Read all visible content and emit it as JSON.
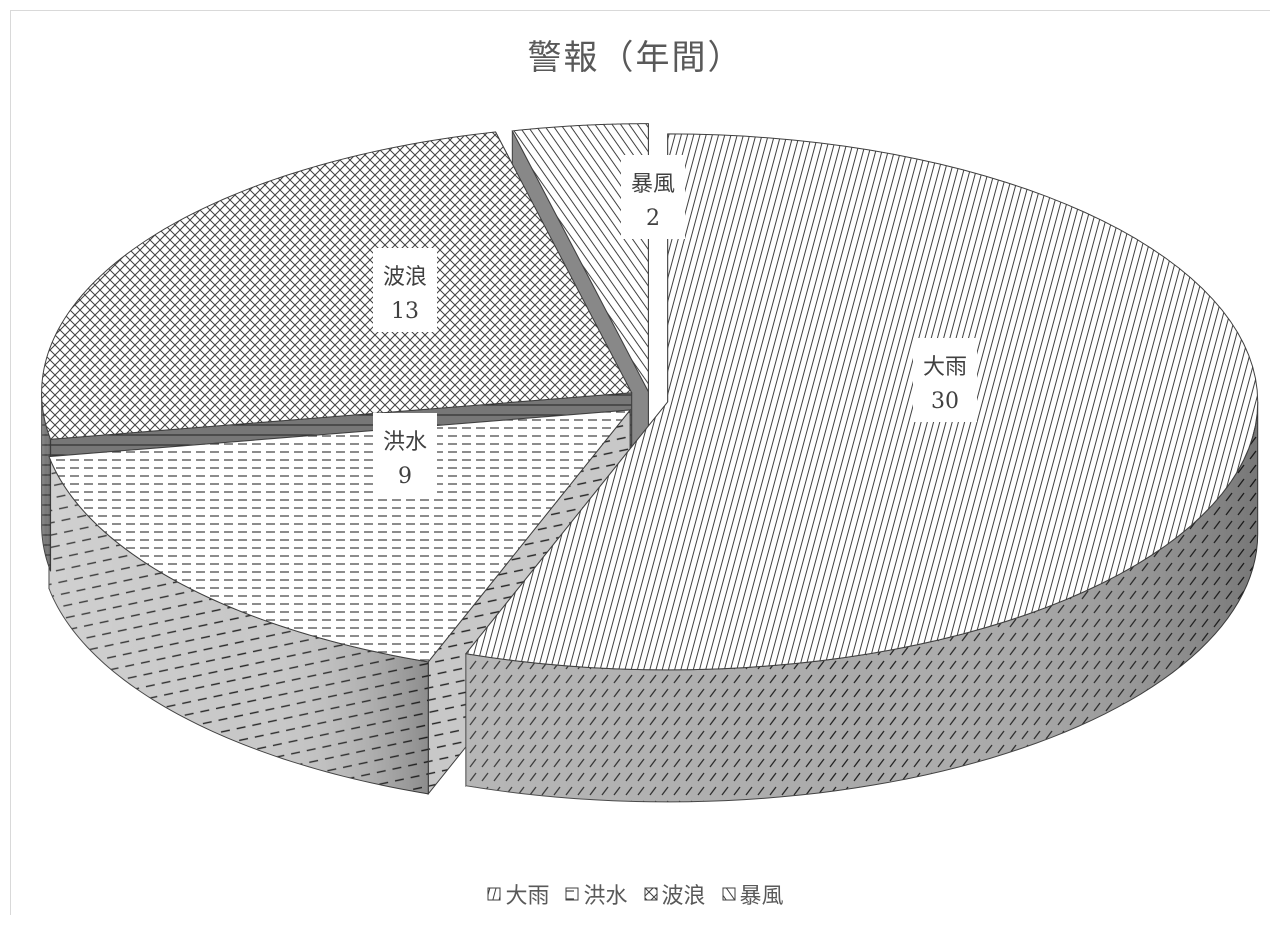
{
  "chart_data": {
    "type": "pie",
    "title": "警報（年間）",
    "categories": [
      "大雨",
      "洪水",
      "波浪",
      "暴風"
    ],
    "values": [
      30,
      9,
      13,
      2
    ],
    "data_labels": [
      {
        "category": "大雨",
        "value": "30"
      },
      {
        "category": "洪水",
        "value": "9"
      },
      {
        "category": "波浪",
        "value": "13"
      },
      {
        "category": "暴風",
        "value": "2"
      }
    ],
    "legend": {
      "position": "bottom",
      "entries": [
        "大雨",
        "洪水",
        "波浪",
        "暴風"
      ]
    },
    "style": "3d-exploded",
    "colors": {
      "edge": "#404040",
      "side": "#9a9a9a",
      "face": "#ffffff"
    }
  }
}
